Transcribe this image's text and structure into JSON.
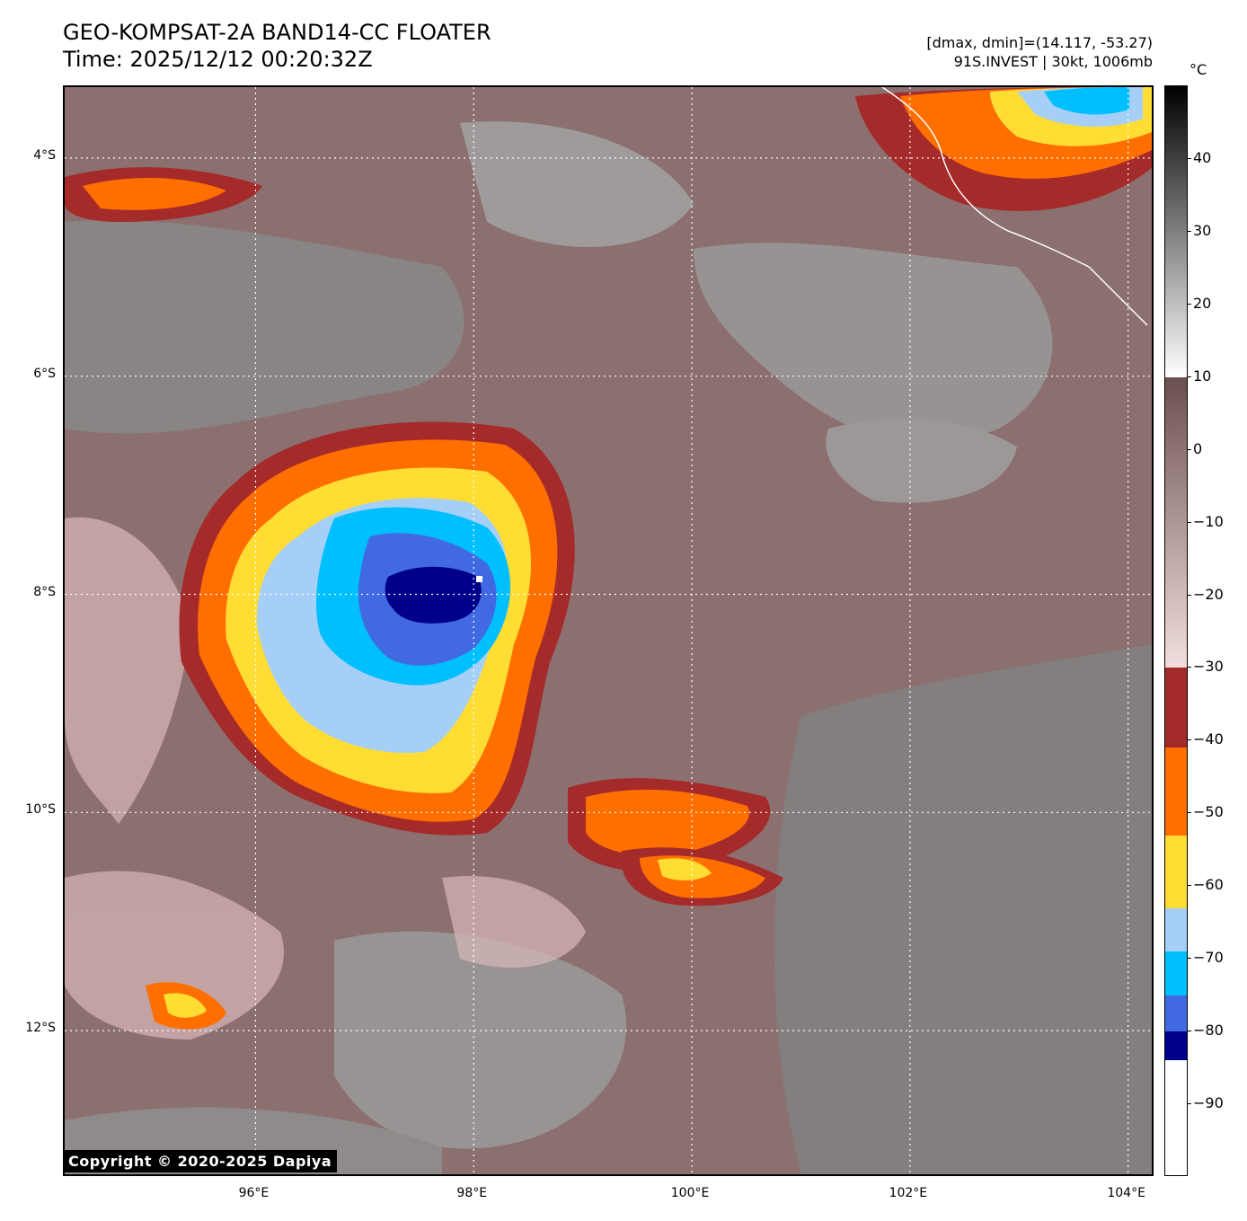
{
  "header": {
    "title_line1": "GEO-KOMPSAT-2A BAND14-CC FLOATER",
    "title_line2": "Time: 2025/12/12 00:20:32Z",
    "stats_line": "[dmax, dmin]=(14.117, -53.27)",
    "storm_line": "91S.INVEST | 30kt, 1006mb"
  },
  "colorbar": {
    "unit": "°C",
    "ticks": [
      "40",
      "30",
      "20",
      "10",
      "0",
      "−10",
      "−20",
      "−30",
      "−40",
      "−50",
      "−60",
      "−70",
      "−80",
      "−90"
    ],
    "segments": [
      {
        "from": 50,
        "to": 10,
        "kind": "gray"
      },
      {
        "from": 10,
        "to": -30,
        "kind": "brown"
      },
      {
        "from": -30,
        "to": -41,
        "color": "#a52a2a"
      },
      {
        "from": -41,
        "to": -53,
        "color": "#ff6f00"
      },
      {
        "from": -53,
        "to": -63,
        "color": "#ffdd33"
      },
      {
        "from": -63,
        "to": -69,
        "color": "#a6cff7"
      },
      {
        "from": -69,
        "to": -75,
        "color": "#00bfff"
      },
      {
        "from": -75,
        "to": -80,
        "color": "#4169e1"
      },
      {
        "from": -80,
        "to": -84,
        "color": "#00008b"
      },
      {
        "from": -84,
        "to": -100,
        "color": "#ffffff"
      }
    ]
  },
  "axes": {
    "lat_labels": [
      "4°S",
      "6°S",
      "8°S",
      "10°S",
      "12°S"
    ],
    "lon_labels": [
      "96°E",
      "98°E",
      "100°E",
      "102°E",
      "104°E"
    ],
    "lat_values": [
      -4,
      -6,
      -8,
      -10,
      -12
    ],
    "lon_values": [
      96,
      98,
      100,
      102,
      104
    ],
    "lat_range": [
      -13.35,
      -3.35
    ],
    "lon_range": [
      94.25,
      104.25
    ]
  },
  "storm_center": {
    "lat": -7.9,
    "lon": 98.0
  },
  "copyright": "Copyright © 2020-2025 Dapiya"
}
